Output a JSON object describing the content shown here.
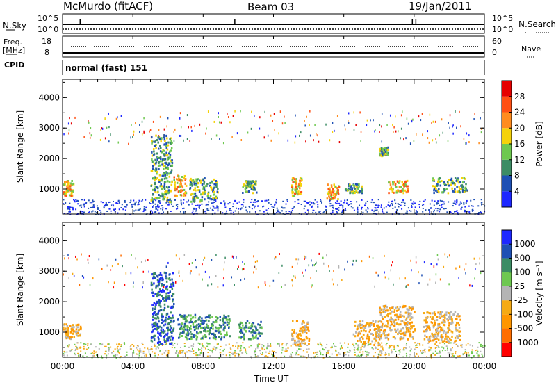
{
  "header": {
    "station": "McMurdo (fitACF)",
    "beam": "Beam 03",
    "date": "19/Jan/2011"
  },
  "strips": {
    "nsky_label": "N.Sky",
    "nsky_left_ticks": [
      "10^5",
      "10^0"
    ],
    "nsearch_label": "N.Search",
    "nsearch_right_ticks": [
      "10^5",
      "10^0"
    ],
    "freq_label": "Freq.",
    "freq_unit": "[MHz]",
    "freq_ticks": [
      "18",
      "8"
    ],
    "nave_label": "Nave",
    "nave_ticks": [
      "60",
      "0"
    ],
    "cpid_label": "CPID",
    "cpid_value": "normal (fast) 151"
  },
  "x_axis": {
    "label": "Time UT",
    "ticks": [
      "00:00",
      "04:00",
      "08:00",
      "12:00",
      "16:00",
      "20:00",
      "00:00"
    ]
  },
  "colors": {
    "power": [
      "#1e28ff",
      "#1e50b4",
      "#3c8c64",
      "#6ec850",
      "#f5d20a",
      "#ff8c1e",
      "#ff5014",
      "#e60000"
    ],
    "velocity": [
      "#ff0000",
      "#ff6e00",
      "#ff9600",
      "#f5aa14",
      "#b4b4b4",
      "#6ec850",
      "#3c8c64",
      "#1e50b4",
      "#1e28ff"
    ]
  },
  "chart_data": [
    {
      "type": "heatmap",
      "name": "power",
      "ylabel": "Slant Range [km]",
      "yticks": [
        "1000",
        "2000",
        "3000",
        "4000"
      ],
      "ylim": [
        180,
        4600
      ],
      "xlim_hours": [
        0,
        24
      ],
      "colorbar_label": "Power [dB]",
      "colorbar_ticks": [
        "4",
        "8",
        "12",
        "16",
        "20",
        "24",
        "28"
      ],
      "colorbar_range": [
        0,
        32
      ],
      "features": [
        {
          "t": [
            0.0,
            0.6
          ],
          "r": [
            800,
            1300
          ],
          "level": "high"
        },
        {
          "t": [
            5.0,
            6.2
          ],
          "r": [
            600,
            2800
          ],
          "level": "mid"
        },
        {
          "t": [
            6.3,
            7.0
          ],
          "r": [
            800,
            1500
          ],
          "level": "high"
        },
        {
          "t": [
            7.2,
            8.8
          ],
          "r": [
            600,
            1400
          ],
          "level": "mid"
        },
        {
          "t": [
            10.2,
            11.0
          ],
          "r": [
            900,
            1300
          ],
          "level": "mid"
        },
        {
          "t": [
            13.0,
            13.6
          ],
          "r": [
            800,
            1400
          ],
          "level": "high"
        },
        {
          "t": [
            15.0,
            15.7
          ],
          "r": [
            700,
            1200
          ],
          "level": "high"
        },
        {
          "t": [
            16.0,
            17.0
          ],
          "r": [
            900,
            1200
          ],
          "level": "mid"
        },
        {
          "t": [
            18.0,
            18.5
          ],
          "r": [
            2100,
            2400
          ],
          "level": "mid"
        },
        {
          "t": [
            18.5,
            19.6
          ],
          "r": [
            900,
            1300
          ],
          "level": "high"
        },
        {
          "t": [
            21.0,
            23.0
          ],
          "r": [
            900,
            1400
          ],
          "level": "mid"
        }
      ]
    },
    {
      "type": "heatmap",
      "name": "velocity",
      "ylabel": "Slant Range [km]",
      "yticks": [
        "1000",
        "2000",
        "3000",
        "4000"
      ],
      "ylim": [
        180,
        4600
      ],
      "xlim_hours": [
        0,
        24
      ],
      "colorbar_label": "Velocity [m s⁻¹]",
      "colorbar_ticks": [
        "1000",
        "500",
        "100",
        "25",
        "-25",
        "-100",
        "-500",
        "-1000"
      ],
      "features": [
        {
          "t": [
            0.0,
            1.0
          ],
          "r": [
            800,
            1300
          ],
          "v": "-100"
        },
        {
          "t": [
            5.0,
            6.3
          ],
          "r": [
            600,
            3000
          ],
          "v": "500"
        },
        {
          "t": [
            6.5,
            9.5
          ],
          "r": [
            800,
            1600
          ],
          "v": "100"
        },
        {
          "t": [
            10.0,
            11.3
          ],
          "r": [
            800,
            1400
          ],
          "v": "100"
        },
        {
          "t": [
            13.0,
            14.0
          ],
          "r": [
            600,
            1400
          ],
          "v": "-100"
        },
        {
          "t": [
            16.5,
            18.0
          ],
          "r": [
            600,
            1400
          ],
          "v": "-100"
        },
        {
          "t": [
            18.0,
            20.0
          ],
          "r": [
            800,
            1900
          ],
          "v": "-100"
        },
        {
          "t": [
            20.5,
            22.6
          ],
          "r": [
            700,
            1700
          ],
          "v": "-100"
        }
      ]
    }
  ]
}
